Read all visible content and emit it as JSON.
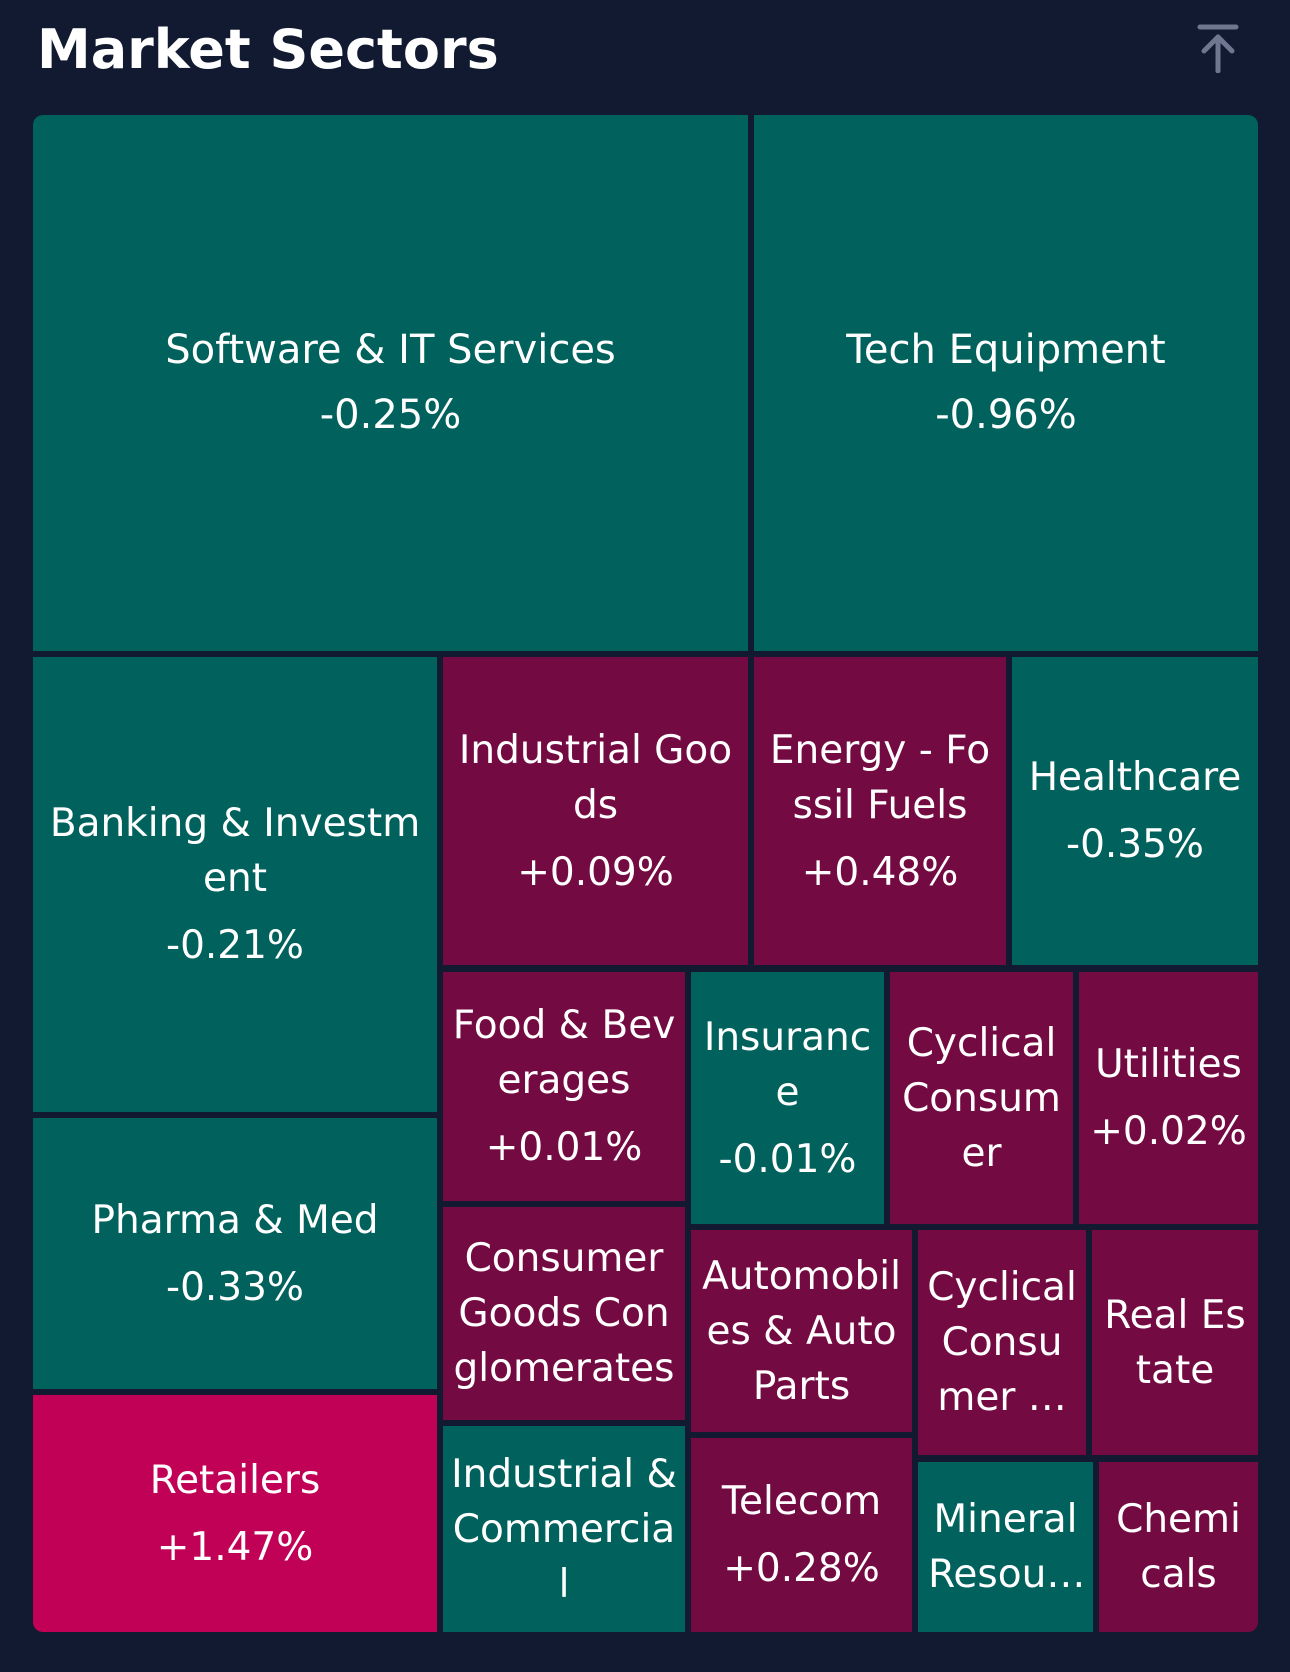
{
  "header": {
    "title": "Market Sectors",
    "scroll_top_icon": "arrow-up-to-top-icon"
  },
  "colors": {
    "background": "#121a31",
    "negative": "#00615d",
    "positive": "#740a42",
    "strong_positive": "#c00155"
  },
  "chart_data": {
    "type": "treemap",
    "title": "Market Sectors",
    "sectors": [
      {
        "name": "Software & IT Services",
        "change": "-0.25%"
      },
      {
        "name": "Tech Equipment",
        "change": "-0.96%"
      },
      {
        "name": "Banking & Investment",
        "change": "-0.21%"
      },
      {
        "name": "Industrial Goods",
        "change": "+0.09%"
      },
      {
        "name": "Energy - Fossil Fuels",
        "change": "+0.48%"
      },
      {
        "name": "Healthcare",
        "change": "-0.35%"
      },
      {
        "name": "Food & Beverages",
        "change": "+0.01%"
      },
      {
        "name": "Insurance",
        "change": "-0.01%"
      },
      {
        "name": "Cyclical Consumer",
        "change": ""
      },
      {
        "name": "Utilities",
        "change": "+0.02%"
      },
      {
        "name": "Pharma & Med",
        "change": "-0.33%"
      },
      {
        "name": "Consumer Goods Conglomerates",
        "change": ""
      },
      {
        "name": "Automobiles & Auto Parts",
        "change": ""
      },
      {
        "name": "Cyclical Consumer Products",
        "change": ""
      },
      {
        "name": "Real Estate",
        "change": ""
      },
      {
        "name": "Retailers",
        "change": "+1.47%"
      },
      {
        "name": "Industrial & Commercial",
        "change": ""
      },
      {
        "name": "Telecom",
        "change": "+0.28%"
      },
      {
        "name": "Mineral Resources",
        "change": ""
      },
      {
        "name": "Chemicals",
        "change": ""
      }
    ]
  }
}
